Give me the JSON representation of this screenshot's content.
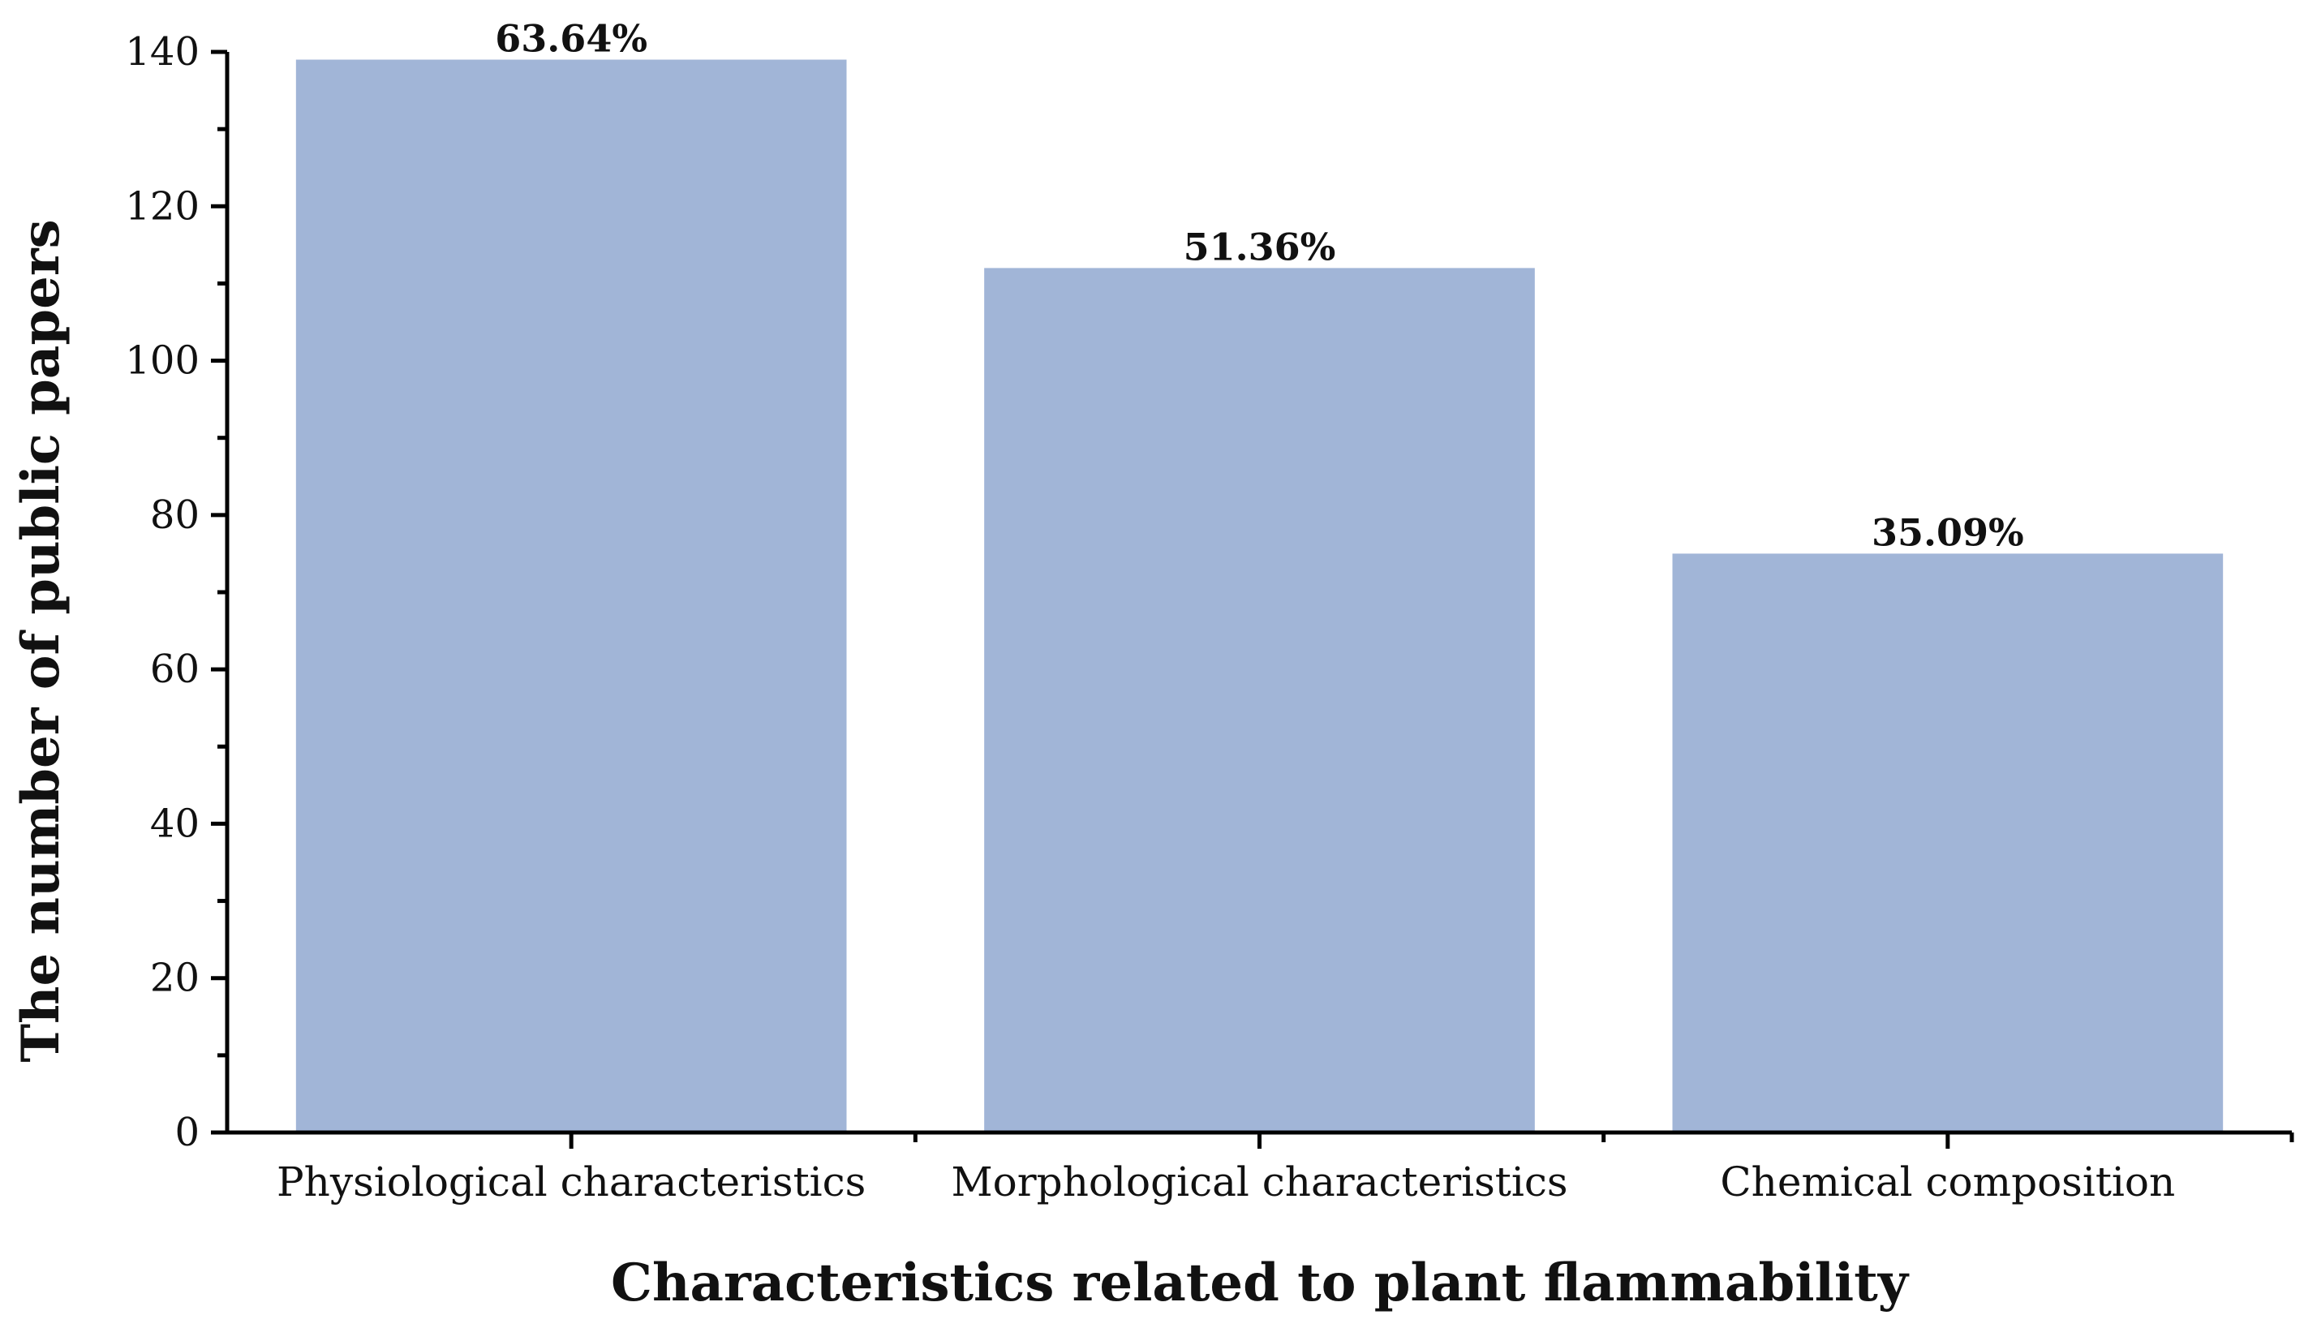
{
  "chart_data": {
    "type": "bar",
    "title": "",
    "xlabel": "Characteristics related to plant flammability",
    "ylabel": "The number of public papers",
    "categories": [
      "Physiological characteristics",
      "Morphological characteristics",
      "Chemical composition"
    ],
    "values": [
      139,
      112,
      75
    ],
    "data_labels": [
      "63.64%",
      "51.36%",
      "35.09%"
    ],
    "ylim": [
      0,
      140
    ],
    "yticks": [
      0,
      20,
      40,
      60,
      80,
      100,
      120,
      140
    ],
    "grid": false,
    "colors": {
      "bar": "#a1b5d7",
      "axis": "#000000"
    }
  }
}
